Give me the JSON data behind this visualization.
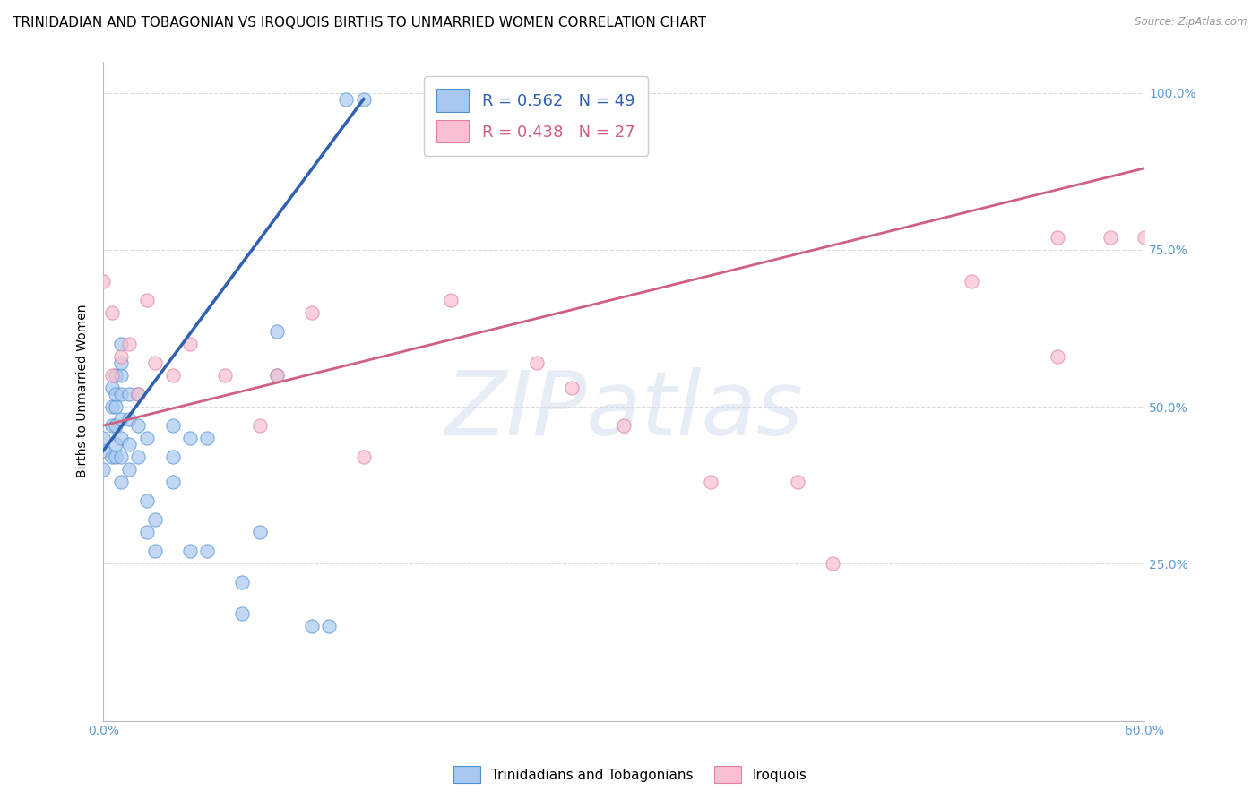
{
  "title": "TRINIDADIAN AND TOBAGONIAN VS IROQUOIS BIRTHS TO UNMARRIED WOMEN CORRELATION CHART",
  "source": "Source: ZipAtlas.com",
  "ylabel": "Births to Unmarried Women",
  "x_min": 0.0,
  "x_max": 0.6,
  "y_min": 0.0,
  "y_max": 1.05,
  "x_ticks": [
    0.0,
    0.1,
    0.2,
    0.3,
    0.4,
    0.5,
    0.6
  ],
  "x_tick_labels_show": [
    "0.0%",
    "",
    "",
    "",
    "",
    "",
    "60.0%"
  ],
  "y_ticks": [
    0.0,
    0.25,
    0.5,
    0.75,
    1.0
  ],
  "y_tick_labels_right": [
    "",
    "25.0%",
    "50.0%",
    "75.0%",
    "100.0%"
  ],
  "legend_blue_label": "R = 0.562   N = 49",
  "legend_pink_label": "R = 0.438   N = 27",
  "blue_fill_color": "#A8C8F0",
  "pink_fill_color": "#F8C0D0",
  "blue_edge_color": "#5090D0",
  "pink_edge_color": "#E080A0",
  "blue_trend_color": "#3060B0",
  "pink_trend_color": "#D06080",
  "watermark_text": "ZIPatlas",
  "blue_scatter_x": [
    0.0,
    0.0,
    0.0,
    0.005,
    0.005,
    0.005,
    0.005,
    0.007,
    0.007,
    0.007,
    0.007,
    0.007,
    0.007,
    0.01,
    0.01,
    0.01,
    0.01,
    0.01,
    0.01,
    0.01,
    0.01,
    0.015,
    0.015,
    0.015,
    0.015,
    0.02,
    0.02,
    0.02,
    0.025,
    0.025,
    0.025,
    0.03,
    0.03,
    0.04,
    0.04,
    0.04,
    0.05,
    0.05,
    0.06,
    0.06,
    0.08,
    0.08,
    0.09,
    0.1,
    0.1,
    0.12,
    0.13,
    0.14,
    0.15
  ],
  "blue_scatter_y": [
    0.4,
    0.43,
    0.45,
    0.42,
    0.47,
    0.5,
    0.53,
    0.42,
    0.44,
    0.47,
    0.5,
    0.52,
    0.55,
    0.38,
    0.42,
    0.45,
    0.48,
    0.52,
    0.55,
    0.57,
    0.6,
    0.4,
    0.44,
    0.48,
    0.52,
    0.42,
    0.47,
    0.52,
    0.3,
    0.35,
    0.45,
    0.27,
    0.32,
    0.38,
    0.42,
    0.47,
    0.27,
    0.45,
    0.27,
    0.45,
    0.17,
    0.22,
    0.3,
    0.55,
    0.62,
    0.15,
    0.15,
    0.99,
    0.99
  ],
  "pink_scatter_x": [
    0.0,
    0.005,
    0.005,
    0.01,
    0.015,
    0.02,
    0.025,
    0.03,
    0.04,
    0.05,
    0.07,
    0.09,
    0.1,
    0.12,
    0.15,
    0.2,
    0.25,
    0.27,
    0.3,
    0.35,
    0.4,
    0.42,
    0.5,
    0.55,
    0.55,
    0.58,
    0.6
  ],
  "pink_scatter_y": [
    0.7,
    0.55,
    0.65,
    0.58,
    0.6,
    0.52,
    0.67,
    0.57,
    0.55,
    0.6,
    0.55,
    0.47,
    0.55,
    0.65,
    0.42,
    0.67,
    0.57,
    0.53,
    0.47,
    0.38,
    0.38,
    0.25,
    0.7,
    0.77,
    0.58,
    0.77,
    0.77
  ],
  "blue_trend_x": [
    0.0,
    0.15
  ],
  "blue_trend_y": [
    0.43,
    0.99
  ],
  "pink_trend_x": [
    0.0,
    0.6
  ],
  "pink_trend_y": [
    0.47,
    0.88
  ],
  "background_color": "#FFFFFF",
  "grid_color": "#DDDDDD",
  "title_fontsize": 11,
  "axis_label_fontsize": 10,
  "tick_fontsize": 10,
  "right_tick_color": "#5B9BD5",
  "scatter_size": 120,
  "scatter_alpha": 0.7
}
